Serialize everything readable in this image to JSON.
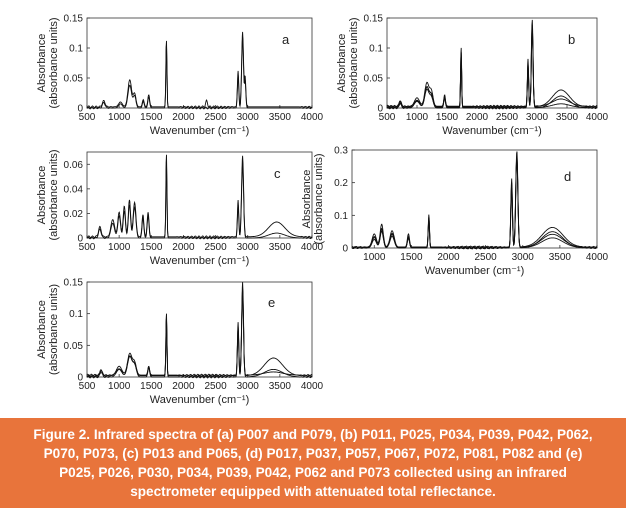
{
  "caption": {
    "text": "Figure 2. Infrared spectra of (a) P007 and P079, (b) P011, P025, P034, P039, P042, P062, P070, P073, (c) P013 and P065, (d) P017, P037, P057, P067, P072, P081, P082 and (e) P025, P026, P030, P034, P039, P042, P062 and P073 collected using an infrared spectrometer equipped with attenuated total reflectance.",
    "background_color": "#e8743b",
    "text_color": "#ffffff"
  },
  "chart_data": [
    {
      "type": "line",
      "panel_label": "a",
      "xlabel": "Wavenumber (cm⁻¹)",
      "ylabel": [
        "Absorbance",
        "(absorbance units)"
      ],
      "xlim": [
        500,
        4000
      ],
      "ylim": [
        0,
        0.15
      ],
      "xticks": [
        "500",
        "1000",
        "1500",
        "2000",
        "2500",
        "3000",
        "3500",
        "4000"
      ],
      "yticks": [
        "0",
        "0.05",
        "0.1",
        "0.15"
      ],
      "series": [
        {
          "peaks": [
            [
              760,
              0.01,
              30
            ],
            [
              1020,
              0.008,
              40
            ],
            [
              1165,
              0.045,
              40
            ],
            [
              1240,
              0.022,
              30
            ],
            [
              1375,
              0.012,
              20
            ],
            [
              1460,
              0.02,
              20
            ],
            [
              1735,
              0.112,
              12
            ],
            [
              2360,
              0.01,
              20
            ],
            [
              2850,
              0.06,
              15
            ],
            [
              2920,
              0.125,
              20
            ],
            [
              2960,
              0.05,
              15
            ]
          ],
          "base": 0.002
        },
        {
          "peaks": [
            [
              760,
              0.009,
              30
            ],
            [
              1020,
              0.007,
              40
            ],
            [
              1165,
              0.038,
              40
            ],
            [
              1240,
              0.02,
              30
            ],
            [
              1375,
              0.011,
              20
            ],
            [
              1460,
              0.018,
              20
            ],
            [
              1735,
              0.108,
              12
            ],
            [
              2850,
              0.055,
              15
            ],
            [
              2920,
              0.118,
              20
            ],
            [
              2960,
              0.045,
              15
            ]
          ],
          "base": 0.0
        }
      ]
    },
    {
      "type": "line",
      "panel_label": "b",
      "xlabel": "Wavenumber (cm⁻¹)",
      "ylabel": [
        "Absorbance",
        "(absorbance units)"
      ],
      "xlim": [
        500,
        4000
      ],
      "ylim": [
        0,
        0.15
      ],
      "xticks": [
        "500",
        "1000",
        "1500",
        "2000",
        "2500",
        "3000",
        "3500",
        "4000"
      ],
      "yticks": [
        "0",
        "0.05",
        "0.1",
        "0.15"
      ],
      "series": [
        {
          "peaks": [
            [
              720,
              0.01,
              25
            ],
            [
              1000,
              0.015,
              60
            ],
            [
              1165,
              0.04,
              50
            ],
            [
              1240,
              0.025,
              40
            ],
            [
              1460,
              0.02,
              20
            ],
            [
              1735,
              0.1,
              12
            ],
            [
              2850,
              0.08,
              15
            ],
            [
              2920,
              0.145,
              20
            ],
            [
              3400,
              0.028,
              200
            ]
          ],
          "base": 0.002
        },
        {
          "peaks": [
            [
              720,
              0.008,
              25
            ],
            [
              1000,
              0.012,
              60
            ],
            [
              1165,
              0.035,
              50
            ],
            [
              1240,
              0.02,
              40
            ],
            [
              1460,
              0.018,
              20
            ],
            [
              1735,
              0.095,
              12
            ],
            [
              2850,
              0.075,
              15
            ],
            [
              2920,
              0.138,
              20
            ],
            [
              3400,
              0.02,
              200
            ]
          ],
          "base": 0.0
        },
        {
          "peaks": [
            [
              720,
              0.009,
              25
            ],
            [
              1000,
              0.01,
              60
            ],
            [
              1165,
              0.032,
              50
            ],
            [
              1240,
              0.018,
              40
            ],
            [
              1460,
              0.016,
              20
            ],
            [
              1735,
              0.09,
              12
            ],
            [
              2850,
              0.07,
              15
            ],
            [
              2920,
              0.13,
              20
            ],
            [
              3400,
              0.012,
              200
            ]
          ],
          "base": 0.003
        },
        {
          "peaks": [
            [
              720,
              0.007,
              25
            ],
            [
              1000,
              0.01,
              60
            ],
            [
              1165,
              0.03,
              50
            ],
            [
              1240,
              0.016,
              40
            ],
            [
              1460,
              0.015,
              20
            ],
            [
              1735,
              0.088,
              12
            ],
            [
              2850,
              0.068,
              15
            ],
            [
              2920,
              0.125,
              20
            ],
            [
              3400,
              0.006,
              200
            ]
          ],
          "base": 0.001
        }
      ]
    },
    {
      "type": "line",
      "panel_label": "c",
      "xlabel": "Wavenumber (cm⁻¹)",
      "ylabel": [
        "Absorbance",
        "(absorbance units)"
      ],
      "xlim": [
        500,
        4000
      ],
      "ylim": [
        0,
        0.07
      ],
      "xticks": [
        "500",
        "1000",
        "1500",
        "2000",
        "2500",
        "3000",
        "3500",
        "4000"
      ],
      "yticks": [
        "0",
        "0.02",
        "0.04",
        "0.06"
      ],
      "series": [
        {
          "peaks": [
            [
              700,
              0.008,
              30
            ],
            [
              900,
              0.014,
              40
            ],
            [
              1000,
              0.02,
              30
            ],
            [
              1080,
              0.025,
              25
            ],
            [
              1160,
              0.03,
              25
            ],
            [
              1240,
              0.028,
              30
            ],
            [
              1370,
              0.018,
              20
            ],
            [
              1450,
              0.02,
              20
            ],
            [
              1735,
              0.068,
              12
            ],
            [
              2850,
              0.03,
              15
            ],
            [
              2920,
              0.066,
              22
            ],
            [
              3450,
              0.012,
              180
            ]
          ],
          "base": 0.001
        },
        {
          "peaks": [
            [
              700,
              0.007,
              30
            ],
            [
              900,
              0.012,
              40
            ],
            [
              1000,
              0.018,
              30
            ],
            [
              1080,
              0.022,
              25
            ],
            [
              1160,
              0.027,
              25
            ],
            [
              1240,
              0.025,
              30
            ],
            [
              1370,
              0.016,
              20
            ],
            [
              1450,
              0.018,
              20
            ],
            [
              1735,
              0.062,
              12
            ],
            [
              2850,
              0.027,
              15
            ],
            [
              2920,
              0.06,
              22
            ],
            [
              3450,
              0.004,
              180
            ]
          ],
          "base": 0.0
        }
      ]
    },
    {
      "type": "line",
      "panel_label": "d",
      "xlabel": "Wavenumber (cm⁻¹)",
      "ylabel": [
        "Absorbance",
        "(absorbance units)"
      ],
      "xlim": [
        700,
        4000
      ],
      "ylim": [
        0,
        0.3
      ],
      "xticks": [
        "1000",
        "1500",
        "2000",
        "2500",
        "3000",
        "3500",
        "4000"
      ],
      "yticks": [
        "0",
        "0.1",
        "0.2",
        "0.3"
      ],
      "series": [
        {
          "peaks": [
            [
              1000,
              0.04,
              40
            ],
            [
              1100,
              0.07,
              30
            ],
            [
              1240,
              0.05,
              40
            ],
            [
              1460,
              0.04,
              20
            ],
            [
              1735,
              0.1,
              12
            ],
            [
              2850,
              0.21,
              15
            ],
            [
              2920,
              0.295,
              20
            ],
            [
              3400,
              0.06,
              200
            ]
          ],
          "base": 0.003
        },
        {
          "peaks": [
            [
              1000,
              0.035,
              40
            ],
            [
              1100,
              0.06,
              30
            ],
            [
              1240,
              0.045,
              40
            ],
            [
              1460,
              0.035,
              20
            ],
            [
              1735,
              0.095,
              12
            ],
            [
              2850,
              0.2,
              15
            ],
            [
              2920,
              0.285,
              20
            ],
            [
              3400,
              0.05,
              200
            ]
          ],
          "base": 0.0
        },
        {
          "peaks": [
            [
              1000,
              0.03,
              40
            ],
            [
              1100,
              0.055,
              30
            ],
            [
              1240,
              0.04,
              40
            ],
            [
              1460,
              0.03,
              20
            ],
            [
              1735,
              0.09,
              12
            ],
            [
              2850,
              0.19,
              15
            ],
            [
              2920,
              0.275,
              20
            ],
            [
              3400,
              0.04,
              200
            ]
          ],
          "base": 0.002
        },
        {
          "peaks": [
            [
              1000,
              0.025,
              40
            ],
            [
              1100,
              0.05,
              30
            ],
            [
              1240,
              0.035,
              40
            ],
            [
              1460,
              0.028,
              20
            ],
            [
              1735,
              0.085,
              12
            ],
            [
              2850,
              0.18,
              15
            ],
            [
              2920,
              0.27,
              20
            ],
            [
              3400,
              0.03,
              200
            ]
          ],
          "base": 0.001
        }
      ]
    },
    {
      "type": "line",
      "panel_label": "e",
      "xlabel": "Wavenumber (cm⁻¹)",
      "ylabel": [
        "Absorbance",
        "(absorbance units)"
      ],
      "xlim": [
        500,
        4000
      ],
      "ylim": [
        0,
        0.15
      ],
      "xticks": [
        "500",
        "1000",
        "1500",
        "2000",
        "2500",
        "3000",
        "3500",
        "4000"
      ],
      "yticks": [
        "0",
        "0.05",
        "0.1",
        "0.15"
      ],
      "series": [
        {
          "peaks": [
            [
              720,
              0.01,
              25
            ],
            [
              1000,
              0.015,
              60
            ],
            [
              1165,
              0.035,
              50
            ],
            [
              1240,
              0.02,
              40
            ],
            [
              1460,
              0.015,
              20
            ],
            [
              1735,
              0.1,
              12
            ],
            [
              2850,
              0.085,
              15
            ],
            [
              2920,
              0.148,
              20
            ],
            [
              3400,
              0.028,
              200
            ]
          ],
          "base": 0.002
        },
        {
          "peaks": [
            [
              720,
              0.008,
              25
            ],
            [
              1000,
              0.012,
              60
            ],
            [
              1165,
              0.032,
              50
            ],
            [
              1240,
              0.018,
              40
            ],
            [
              1460,
              0.014,
              20
            ],
            [
              1735,
              0.095,
              12
            ],
            [
              2850,
              0.08,
              15
            ],
            [
              2920,
              0.14,
              20
            ],
            [
              3400,
              0.012,
              200
            ]
          ],
          "base": 0.0
        },
        {
          "peaks": [
            [
              720,
              0.007,
              25
            ],
            [
              1000,
              0.01,
              60
            ],
            [
              1165,
              0.03,
              50
            ],
            [
              1240,
              0.016,
              40
            ],
            [
              1460,
              0.013,
              20
            ],
            [
              1735,
              0.09,
              12
            ],
            [
              2850,
              0.075,
              15
            ],
            [
              2920,
              0.132,
              20
            ],
            [
              3400,
              0.005,
              200
            ]
          ],
          "base": 0.003
        }
      ]
    }
  ]
}
